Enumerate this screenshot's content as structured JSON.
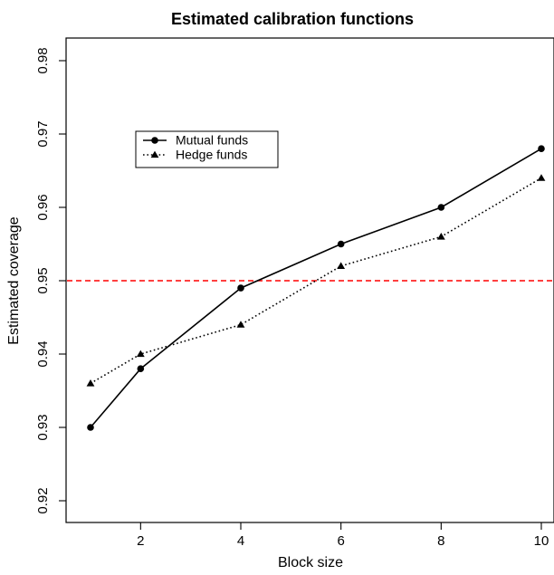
{
  "chart_data": {
    "type": "line",
    "title": "Estimated calibration functions",
    "xlabel": "Block size",
    "ylabel": "Estimated coverage",
    "xlim": [
      1,
      10
    ],
    "ylim": [
      0.92,
      0.98
    ],
    "x_ticks": [
      2,
      4,
      6,
      8,
      10
    ],
    "x_tick_labels": [
      "2",
      "4",
      "6",
      "8",
      "10"
    ],
    "y_ticks": [
      0.92,
      0.93,
      0.94,
      0.95,
      0.96,
      0.97,
      0.98
    ],
    "y_tick_labels": [
      "0.92",
      "0.93",
      "0.94",
      "0.95",
      "0.96",
      "0.97",
      "0.98"
    ],
    "grid": false,
    "legend_position": "upper-left",
    "x": [
      1,
      2,
      4,
      6,
      8,
      10
    ],
    "series": [
      {
        "name": "Mutual funds",
        "values": [
          0.93,
          0.938,
          0.949,
          0.955,
          0.96,
          0.968
        ],
        "color": "#000000",
        "line_style": "solid",
        "marker": "circle"
      },
      {
        "name": "Hedge funds",
        "values": [
          0.936,
          0.94,
          0.944,
          0.952,
          0.956,
          0.964
        ],
        "color": "#000000",
        "line_style": "dotted",
        "marker": "triangle"
      }
    ],
    "reference_line": {
      "y": 0.95,
      "color": "#ff0000",
      "line_style": "dashed"
    }
  }
}
